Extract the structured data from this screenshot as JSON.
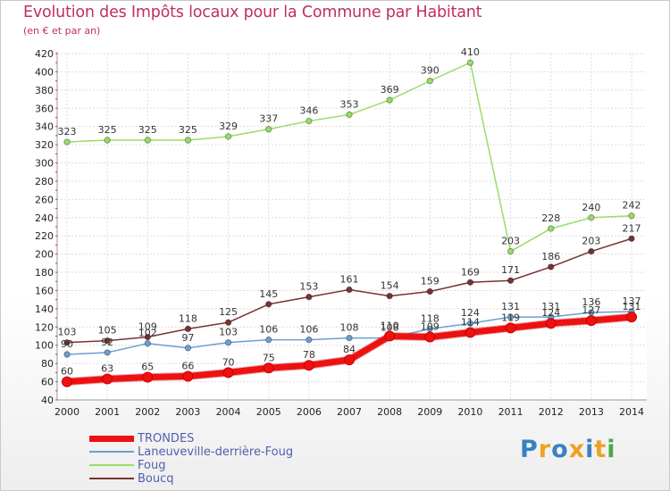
{
  "chart_data": {
    "type": "line",
    "title": "Evolution des Impôts locaux pour la Commune par Habitant",
    "subtitle": "(en € et par an)",
    "xlabel": "",
    "ylabel": "",
    "ylim": [
      40,
      420
    ],
    "ytick_step": 20,
    "x": [
      "2000",
      "2001",
      "2002",
      "2003",
      "2004",
      "2005",
      "2006",
      "2007",
      "2008",
      "2009",
      "2010",
      "2011",
      "2012",
      "2013",
      "2014"
    ],
    "series": [
      {
        "name": "TRONDES",
        "color": "#ee1111",
        "line_role": "main",
        "values": [
          60,
          63,
          65,
          66,
          70,
          75,
          78,
          84,
          110,
          109,
          114,
          119,
          124,
          127,
          131
        ],
        "labels": [
          60,
          63,
          65,
          66,
          70,
          75,
          78,
          84,
          110,
          109,
          114,
          119,
          124,
          127,
          131
        ]
      },
      {
        "name": "Laneuveville-derrière-Foug",
        "color": "#6aa0d0",
        "line_role": "normal",
        "values": [
          90,
          92,
          102,
          97,
          103,
          106,
          106,
          108,
          108,
          118,
          124,
          131,
          131,
          136,
          137
        ],
        "labels": [
          90,
          92,
          102,
          97,
          103,
          106,
          106,
          108,
          108,
          118,
          124,
          131,
          131,
          136,
          137
        ]
      },
      {
        "name": "Foug",
        "color": "#99dd66",
        "line_role": "normal",
        "values": [
          323,
          325,
          325,
          325,
          329,
          337,
          346,
          353,
          369,
          390,
          410,
          203,
          228,
          240,
          242
        ],
        "labels": [
          323,
          325,
          325,
          325,
          329,
          337,
          346,
          353,
          369,
          390,
          410,
          203,
          228,
          240,
          242
        ]
      },
      {
        "name": "Boucq",
        "color": "#773333",
        "line_role": "normal",
        "values": [
          103,
          105,
          109,
          118,
          125,
          145,
          153,
          161,
          154,
          159,
          169,
          171,
          186,
          203,
          217
        ],
        "labels": [
          103,
          105,
          109,
          118,
          125,
          145,
          153,
          161,
          154,
          159,
          169,
          171,
          186,
          203,
          217
        ]
      }
    ]
  },
  "legend": [
    {
      "label": "TRONDES"
    },
    {
      "label": "Laneuveville-derrière-Foug"
    },
    {
      "label": "Foug"
    },
    {
      "label": "Boucq"
    }
  ],
  "logo": {
    "text": "Proxiti"
  }
}
